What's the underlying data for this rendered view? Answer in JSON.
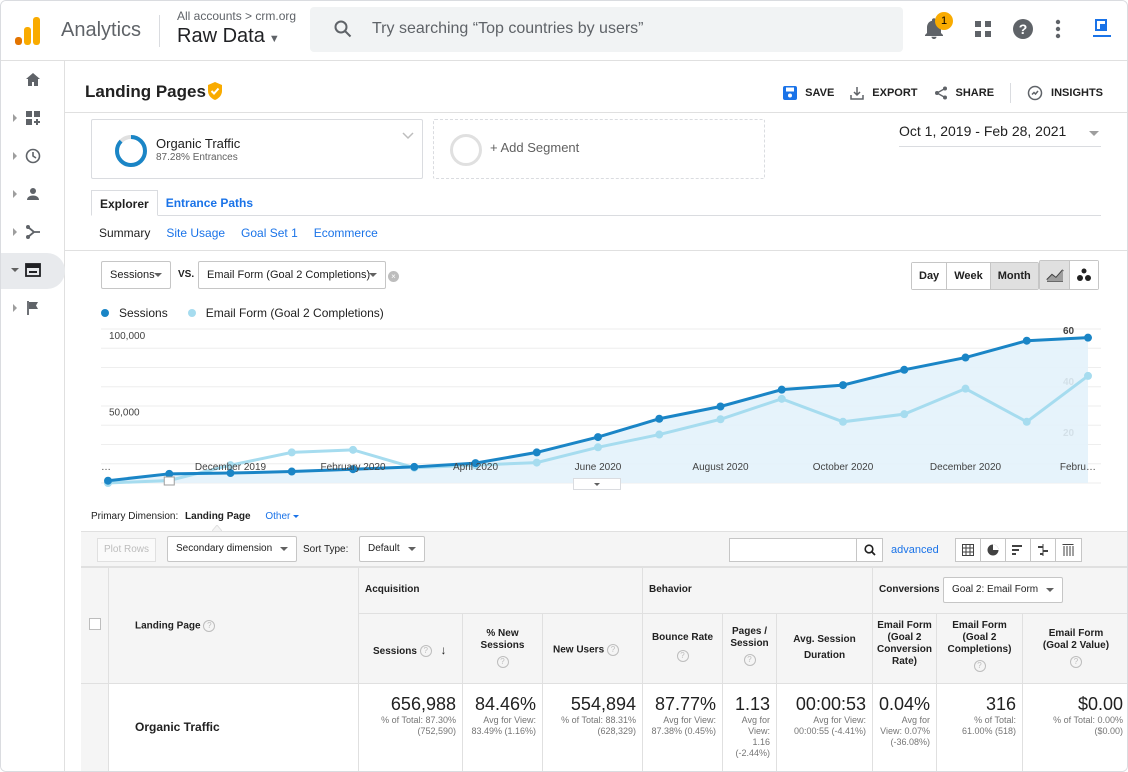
{
  "app": {
    "name": "Analytics"
  },
  "account": {
    "path": "All accounts > crm.org",
    "view": "Raw Data"
  },
  "search": {
    "placeholder": "Try searching “Top countries by users”"
  },
  "notifications": {
    "count": "1"
  },
  "page": {
    "title": "Landing Pages"
  },
  "actions": {
    "save": "SAVE",
    "export": "EXPORT",
    "share": "SHARE",
    "insights": "INSIGHTS"
  },
  "segment": {
    "name": "Organic Traffic",
    "sub": "87.28% Entrances",
    "add": "+ Add Segment"
  },
  "daterange": "Oct 1, 2019 - Feb 28, 2021",
  "tabs": [
    {
      "label": "Explorer"
    },
    {
      "label": "Entrance Paths"
    }
  ],
  "subtabs": [
    {
      "label": "Summary"
    },
    {
      "label": "Site Usage"
    },
    {
      "label": "Goal Set 1"
    },
    {
      "label": "Ecommerce"
    }
  ],
  "metric_selector": {
    "primary": "Sessions",
    "vs": "VS.",
    "secondary": "Email Form (Goal 2 Completions)"
  },
  "granularity": [
    "Day",
    "Week",
    "Month"
  ],
  "chart_data": {
    "type": "line",
    "x": [
      "…",
      "",
      "December 2019",
      "",
      "February 2020",
      "",
      "April 2020",
      "",
      "June 2020",
      "",
      "August 2020",
      "",
      "October 2020",
      "",
      "December 2020",
      "",
      "Febru…"
    ],
    "series": [
      {
        "name": "Sessions",
        "color": "#1a85c6",
        "axis": "left",
        "values": [
          1500,
          6000,
          6500,
          7500,
          9000,
          10500,
          13000,
          20000,
          30000,
          42000,
          50000,
          61000,
          64000,
          74000,
          82000,
          93000,
          95000
        ]
      },
      {
        "name": "Email Form (Goal 2 Completions)",
        "color": "#a6dcef",
        "axis": "right",
        "values": [
          0,
          1,
          7,
          12,
          13,
          6,
          7,
          8,
          14,
          19,
          25,
          33,
          24,
          27,
          37,
          24,
          42
        ]
      }
    ],
    "left_axis": {
      "ticks": [
        "100,000",
        "50,000"
      ],
      "range": [
        0,
        100000
      ]
    },
    "right_axis": {
      "ticks": [
        "60",
        "40",
        "20"
      ],
      "range": [
        0,
        60
      ]
    },
    "x_tick_labels": [
      "…",
      "December 2019",
      "February 2020",
      "April 2020",
      "June 2020",
      "August 2020",
      "October 2020",
      "December 2020",
      "Febru…"
    ]
  },
  "primary_dimension": {
    "label": "Primary Dimension:",
    "value": "Landing Page",
    "other": "Other"
  },
  "toolbar": {
    "plot_rows": "Plot Rows",
    "secondary_dimension": "Secondary dimension",
    "sort_type_label": "Sort Type:",
    "sort_type": "Default",
    "advanced": "advanced"
  },
  "table": {
    "dimension_header": "Landing Page",
    "groups": {
      "acquisition": "Acquisition",
      "behavior": "Behavior",
      "conversions": "Conversions",
      "goal_select": "Goal 2: Email Form"
    },
    "columns": [
      {
        "label": "Sessions"
      },
      {
        "label": "% New Sessions"
      },
      {
        "label": "New Users"
      },
      {
        "label": "Bounce Rate"
      },
      {
        "label": "Pages / Session"
      },
      {
        "label": "Avg. Session Duration"
      },
      {
        "label": "Email Form (Goal 2 Conversion Rate)"
      },
      {
        "label": "Email Form (Goal 2 Completions)"
      },
      {
        "label": "Email Form (Goal 2 Value)"
      }
    ],
    "row": {
      "label": "Organic Traffic",
      "cells": [
        {
          "value": "656,988",
          "sub": "% of Total: 87.30% (752,590)"
        },
        {
          "value": "84.46%",
          "sub": "Avg for View: 83.49% (1.16%)"
        },
        {
          "value": "554,894",
          "sub": "% of Total: 88.31% (628,329)"
        },
        {
          "value": "87.77%",
          "sub": "Avg for View: 87.38% (0.45%)"
        },
        {
          "value": "1.13",
          "sub": "Avg for View: 1.16 (-2.44%)"
        },
        {
          "value": "00:00:53",
          "sub": "Avg for View: 00:00:55 (-4.41%)"
        },
        {
          "value": "0.04%",
          "sub": "Avg for View: 0.07% (-36.08%)"
        },
        {
          "value": "316",
          "sub": "% of Total: 61.00% (518)"
        },
        {
          "value": "$0.00",
          "sub": "% of Total: 0.00% ($0.00)"
        }
      ]
    }
  },
  "colors": {
    "primary_blue": "#1a73e8",
    "series_dark": "#1a85c6",
    "series_light": "#a6dcef",
    "accent_orange": "#f9ab00"
  }
}
